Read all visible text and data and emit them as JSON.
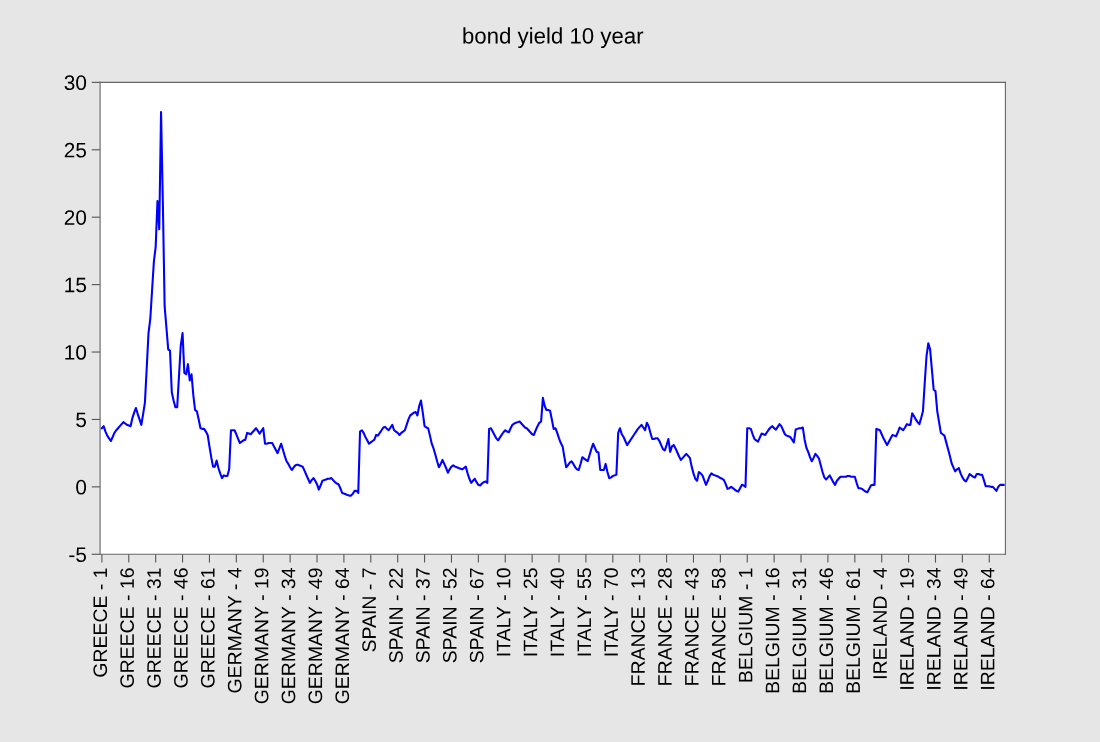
{
  "chart_data": {
    "type": "line",
    "title": "bond yield 10 year",
    "categories": [
      "GREECE - 1",
      null,
      null,
      null,
      null,
      null,
      null,
      null,
      null,
      null,
      null,
      null,
      null,
      null,
      null,
      "GREECE - 16",
      null,
      null,
      null,
      null,
      null,
      null,
      null,
      null,
      null,
      null,
      null,
      null,
      null,
      null,
      "GREECE - 31",
      null,
      null,
      null,
      null,
      null,
      null,
      null,
      null,
      null,
      null,
      null,
      null,
      null,
      null,
      "GREECE - 46",
      null,
      null,
      null,
      null,
      null,
      null,
      null,
      null,
      null,
      null,
      null,
      null,
      null,
      null,
      "GREECE - 61",
      null,
      null,
      null,
      null,
      null,
      null,
      null,
      null,
      null,
      null,
      null,
      null,
      null,
      null,
      "GERMANY - 4",
      null,
      null,
      null,
      null,
      null,
      null,
      null,
      null,
      null,
      null,
      null,
      null,
      null,
      null,
      "GERMANY - 19",
      null,
      null,
      null,
      null,
      null,
      null,
      null,
      null,
      null,
      null,
      null,
      null,
      null,
      null,
      "GERMANY - 34",
      null,
      null,
      null,
      null,
      null,
      null,
      null,
      null,
      null,
      null,
      null,
      null,
      null,
      null,
      "GERMANY - 49",
      null,
      null,
      null,
      null,
      null,
      null,
      null,
      null,
      null,
      null,
      null,
      null,
      null,
      null,
      "GERMANY - 64",
      null,
      null,
      null,
      null,
      null,
      null,
      null,
      null,
      null,
      null,
      null,
      null,
      null,
      null,
      "SPAIN - 7",
      null,
      null,
      null,
      null,
      null,
      null,
      null,
      null,
      null,
      null,
      null,
      null,
      null,
      null,
      "SPAIN - 22",
      null,
      null,
      null,
      null,
      null,
      null,
      null,
      null,
      null,
      null,
      null,
      null,
      null,
      null,
      "SPAIN - 37",
      null,
      null,
      null,
      null,
      null,
      null,
      null,
      null,
      null,
      null,
      null,
      null,
      null,
      null,
      "SPAIN - 52",
      null,
      null,
      null,
      null,
      null,
      null,
      null,
      null,
      null,
      null,
      null,
      null,
      null,
      null,
      "SPAIN - 67",
      null,
      null,
      null,
      null,
      null,
      null,
      null,
      null,
      null,
      null,
      null,
      null,
      null,
      null,
      "ITALY - 10",
      null,
      null,
      null,
      null,
      null,
      null,
      null,
      null,
      null,
      null,
      null,
      null,
      null,
      null,
      "ITALY - 25",
      null,
      null,
      null,
      null,
      null,
      null,
      null,
      null,
      null,
      null,
      null,
      null,
      null,
      null,
      "ITALY - 40",
      null,
      null,
      null,
      null,
      null,
      null,
      null,
      null,
      null,
      null,
      null,
      null,
      null,
      null,
      "ITALY - 55",
      null,
      null,
      null,
      null,
      null,
      null,
      null,
      null,
      null,
      null,
      null,
      null,
      null,
      null,
      "ITALY - 70",
      null,
      null,
      null,
      null,
      null,
      null,
      null,
      null,
      null,
      null,
      null,
      null,
      null,
      null,
      "FRANCE - 13",
      null,
      null,
      null,
      null,
      null,
      null,
      null,
      null,
      null,
      null,
      null,
      null,
      null,
      null,
      "FRANCE - 28",
      null,
      null,
      null,
      null,
      null,
      null,
      null,
      null,
      null,
      null,
      null,
      null,
      null,
      null,
      "FRANCE - 43",
      null,
      null,
      null,
      null,
      null,
      null,
      null,
      null,
      null,
      null,
      null,
      null,
      null,
      null,
      "FRANCE - 58",
      null,
      null,
      null,
      null,
      null,
      null,
      null,
      null,
      null,
      null,
      null,
      null,
      null,
      null,
      "BELGIUM - 1",
      null,
      null,
      null,
      null,
      null,
      null,
      null,
      null,
      null,
      null,
      null,
      null,
      null,
      null,
      "BELGIUM - 16",
      null,
      null,
      null,
      null,
      null,
      null,
      null,
      null,
      null,
      null,
      null,
      null,
      null,
      null,
      "BELGIUM - 31",
      null,
      null,
      null,
      null,
      null,
      null,
      null,
      null,
      null,
      null,
      null,
      null,
      null,
      null,
      "BELGIUM - 46",
      null,
      null,
      null,
      null,
      null,
      null,
      null,
      null,
      null,
      null,
      null,
      null,
      null,
      null,
      "BELGIUM - 61",
      null,
      null,
      null,
      null,
      null,
      null,
      null,
      null,
      null,
      null,
      null,
      null,
      null,
      null,
      "IRELAND - 4",
      null,
      null,
      null,
      null,
      null,
      null,
      null,
      null,
      null,
      null,
      null,
      null,
      null,
      null,
      "IRELAND - 19",
      null,
      null,
      null,
      null,
      null,
      null,
      null,
      null,
      null,
      null,
      null,
      null,
      null,
      null,
      "IRELAND - 34",
      null,
      null,
      null,
      null,
      null,
      null,
      null,
      null,
      null,
      null,
      null,
      null,
      null,
      null,
      "IRELAND - 49",
      null,
      null,
      null,
      null,
      null,
      null,
      null,
      null,
      null,
      null,
      null,
      null,
      null,
      null,
      "IRELAND - 64",
      null,
      null,
      null,
      null,
      null,
      null,
      null,
      null
    ],
    "values": [
      4.35,
      4.5,
      4.1,
      3.8,
      3.6,
      3.4,
      3.7,
      4.0,
      4.2,
      4.35,
      4.5,
      4.65,
      4.8,
      4.7,
      4.6,
      4.55,
      4.5,
      5.1,
      5.5,
      5.85,
      5.4,
      5.0,
      4.6,
      5.4,
      6.25,
      8.8,
      11.4,
      12.45,
      14.6,
      16.7,
      17.8,
      21.2,
      19.1,
      27.8,
      21.1,
      13.4,
      11.8,
      10.2,
      10.1,
      7.0,
      6.4,
      5.9,
      5.9,
      8.2,
      10.5,
      11.4,
      8.45,
      8.35,
      9.1,
      7.9,
      8.35,
      6.8,
      5.7,
      5.6,
      5.0,
      4.35,
      4.3,
      4.3,
      4.1,
      3.85,
      3.0,
      2.2,
      1.5,
      1.5,
      1.95,
      1.4,
      1.0,
      0.65,
      0.85,
      0.8,
      0.8,
      1.3,
      4.2,
      4.2,
      4.2,
      3.9,
      3.55,
      3.25,
      3.35,
      3.45,
      3.5,
      4.0,
      3.95,
      3.9,
      4.05,
      4.2,
      4.35,
      4.15,
      3.95,
      4.15,
      4.35,
      3.2,
      3.2,
      3.25,
      3.25,
      3.25,
      3.0,
      2.75,
      2.5,
      2.85,
      3.2,
      2.75,
      2.3,
      1.9,
      1.7,
      1.45,
      1.25,
      1.45,
      1.6,
      1.65,
      1.6,
      1.55,
      1.5,
      1.2,
      0.9,
      0.6,
      0.3,
      0.5,
      0.65,
      0.45,
      0.2,
      -0.2,
      0.1,
      0.45,
      0.5,
      0.55,
      0.6,
      0.6,
      0.65,
      0.5,
      0.35,
      0.25,
      0.2,
      -0.1,
      -0.45,
      -0.5,
      -0.55,
      -0.6,
      -0.65,
      -0.65,
      -0.5,
      -0.3,
      -0.3,
      -0.45,
      4.1,
      4.2,
      4.0,
      3.7,
      3.45,
      3.2,
      3.3,
      3.4,
      3.5,
      3.85,
      3.8,
      4.0,
      4.2,
      4.4,
      4.45,
      4.3,
      4.2,
      4.4,
      4.6,
      4.2,
      4.1,
      4.0,
      3.85,
      4.0,
      4.1,
      4.2,
      4.6,
      5.0,
      5.3,
      5.4,
      5.5,
      5.55,
      5.3,
      6.0,
      6.4,
      5.5,
      4.5,
      4.4,
      4.35,
      3.8,
      3.2,
      2.85,
      2.4,
      1.9,
      1.45,
      1.7,
      2.0,
      1.7,
      1.4,
      1.05,
      1.3,
      1.5,
      1.6,
      1.5,
      1.45,
      1.4,
      1.35,
      1.3,
      1.4,
      1.5,
      1.0,
      0.6,
      0.3,
      0.45,
      0.6,
      0.35,
      0.15,
      0.1,
      0.25,
      0.35,
      0.4,
      0.3,
      4.3,
      4.35,
      4.1,
      3.85,
      3.6,
      3.45,
      3.65,
      3.85,
      4.05,
      4.2,
      4.1,
      4.05,
      4.35,
      4.6,
      4.7,
      4.75,
      4.8,
      4.85,
      4.7,
      4.55,
      4.4,
      4.35,
      4.2,
      4.05,
      3.9,
      3.85,
      4.2,
      4.5,
      4.75,
      4.85,
      6.6,
      6.0,
      5.7,
      5.7,
      5.65,
      5.0,
      4.3,
      4.35,
      4.0,
      3.6,
      3.25,
      3.0,
      2.2,
      1.45,
      1.6,
      1.8,
      1.9,
      1.7,
      1.45,
      1.3,
      1.25,
      1.7,
      2.2,
      2.1,
      2.0,
      1.9,
      2.35,
      2.8,
      3.2,
      2.9,
      2.6,
      2.55,
      1.25,
      1.25,
      1.25,
      1.7,
      1.1,
      0.65,
      0.7,
      0.8,
      0.85,
      0.9,
      4.0,
      4.35,
      3.9,
      3.7,
      3.4,
      3.1,
      3.3,
      3.5,
      3.7,
      3.9,
      4.1,
      4.3,
      4.45,
      4.6,
      4.4,
      4.2,
      4.75,
      4.5,
      4.0,
      3.55,
      3.55,
      3.6,
      3.6,
      3.4,
      3.1,
      2.8,
      2.7,
      3.1,
      3.55,
      2.6,
      3.0,
      3.1,
      2.85,
      2.55,
      2.25,
      2.0,
      2.15,
      2.3,
      2.45,
      2.3,
      2.15,
      1.5,
      1.0,
      0.6,
      0.45,
      1.1,
      1.0,
      0.85,
      0.5,
      0.15,
      0.45,
      0.8,
      1.0,
      0.9,
      0.85,
      0.8,
      0.75,
      0.65,
      0.6,
      0.5,
      0.2,
      -0.15,
      -0.1,
      0.0,
      -0.1,
      -0.2,
      -0.3,
      -0.35,
      -0.1,
      0.15,
      0.1,
      0.0,
      4.35,
      4.35,
      4.3,
      3.9,
      3.55,
      3.45,
      3.35,
      3.65,
      3.95,
      3.9,
      3.85,
      4.05,
      4.25,
      4.4,
      4.5,
      4.35,
      4.25,
      4.45,
      4.65,
      4.5,
      4.2,
      3.9,
      3.8,
      3.75,
      3.7,
      3.5,
      3.3,
      4.25,
      4.3,
      4.35,
      4.35,
      4.4,
      3.5,
      2.9,
      2.6,
      2.2,
      1.9,
      2.15,
      2.45,
      2.3,
      2.1,
      1.6,
      1.1,
      0.7,
      0.55,
      0.7,
      0.85,
      0.6,
      0.35,
      0.15,
      0.45,
      0.6,
      0.75,
      0.75,
      0.75,
      0.75,
      0.8,
      0.8,
      0.75,
      0.75,
      0.75,
      0.3,
      -0.1,
      -0.1,
      -0.15,
      -0.25,
      -0.35,
      -0.4,
      -0.15,
      0.1,
      0.15,
      0.15,
      4.3,
      4.25,
      4.2,
      3.9,
      3.6,
      3.35,
      3.1,
      3.35,
      3.6,
      3.85,
      3.8,
      3.75,
      4.05,
      4.4,
      4.3,
      4.2,
      4.4,
      4.65,
      4.6,
      4.6,
      5.45,
      5.25,
      5.0,
      4.8,
      4.65,
      5.1,
      5.6,
      7.7,
      9.7,
      10.65,
      10.2,
      8.7,
      7.2,
      7.1,
      5.6,
      4.8,
      4.0,
      3.9,
      3.8,
      3.3,
      2.8,
      2.3,
      1.75,
      1.45,
      1.15,
      1.3,
      1.4,
      1.0,
      0.7,
      0.5,
      0.4,
      0.65,
      0.95,
      0.85,
      0.75,
      0.7,
      0.95,
      0.95,
      0.9,
      0.9,
      0.5,
      0.05,
      0.05,
      0.05,
      0.0,
      0.0,
      -0.15,
      -0.3,
      0.0,
      0.15,
      0.15,
      0.15
    ],
    "color": "#0000ff",
    "line_style": "solid",
    "marker": "none",
    "grid": false,
    "legend": false,
    "ylim": [
      -5,
      30
    ],
    "yticks": [
      -5,
      0,
      5,
      10,
      15,
      20,
      25,
      30
    ]
  }
}
